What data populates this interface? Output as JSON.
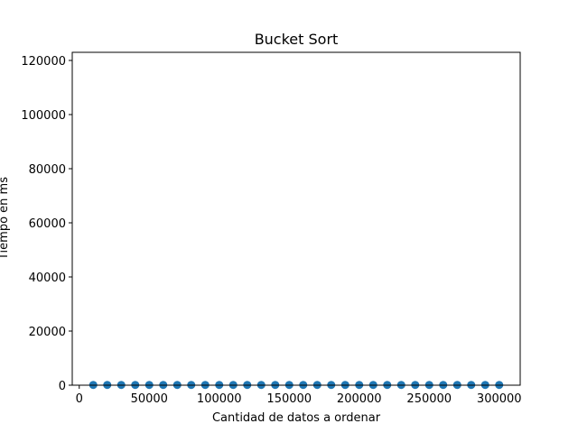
{
  "chart_data": {
    "type": "scatter",
    "title": "Bucket Sort",
    "xlabel": "Cantidad de datos a ordenar",
    "ylabel": "Tiempo en ms",
    "xlim": [
      -5000,
      315000
    ],
    "ylim": [
      0,
      123000
    ],
    "xticks": [
      0,
      50000,
      100000,
      150000,
      200000,
      250000,
      300000
    ],
    "xtick_labels": [
      "0",
      "50000",
      "100000",
      "150000",
      "200000",
      "250000",
      "300000"
    ],
    "yticks": [
      0,
      20000,
      40000,
      60000,
      80000,
      100000,
      120000
    ],
    "ytick_labels": [
      "0",
      "20000",
      "40000",
      "60000",
      "80000",
      "100000",
      "120000"
    ],
    "grid": false,
    "marker_color": "#1f77b4",
    "x": [
      10000,
      20000,
      30000,
      40000,
      50000,
      60000,
      70000,
      80000,
      90000,
      100000,
      110000,
      120000,
      130000,
      140000,
      150000,
      160000,
      170000,
      180000,
      190000,
      200000,
      210000,
      220000,
      230000,
      240000,
      250000,
      260000,
      270000,
      280000,
      290000,
      300000
    ],
    "y": [
      100,
      100,
      100,
      100,
      100,
      100,
      100,
      100,
      100,
      100,
      100,
      100,
      100,
      100,
      100,
      100,
      100,
      100,
      100,
      100,
      100,
      100,
      100,
      100,
      100,
      100,
      100,
      100,
      100,
      100
    ]
  }
}
